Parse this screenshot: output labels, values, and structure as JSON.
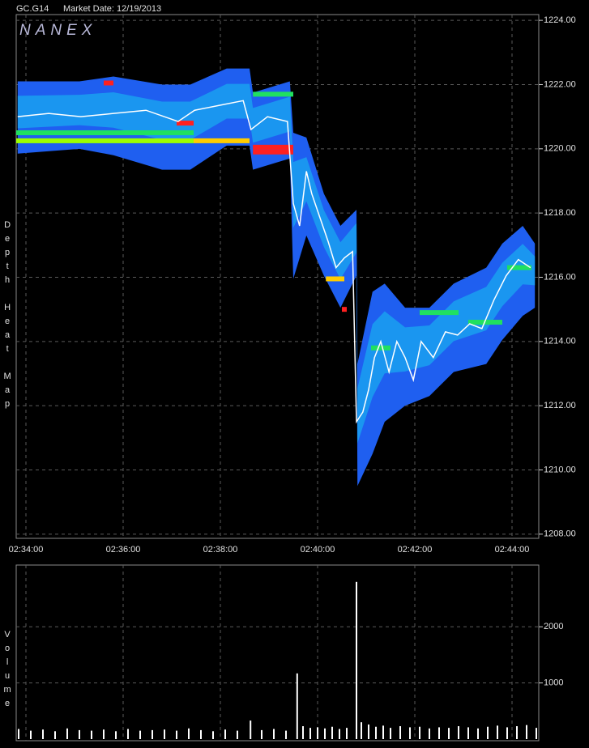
{
  "chart_data": [
    {
      "type": "line",
      "title": "GC.G14",
      "subtitle": "Market Date: 12/19/2013",
      "watermark": "NANEX",
      "ylabel": "Depth Heat Map",
      "xlim": [
        153.8,
        164.55
      ],
      "ylim": [
        1207.87,
        1224.18
      ],
      "xticks": [
        {
          "value": 154,
          "label": "02:34:00"
        },
        {
          "value": 156,
          "label": "02:36:00"
        },
        {
          "value": 158,
          "label": "02:38:00"
        },
        {
          "value": 160,
          "label": "02:40:00"
        },
        {
          "value": 162,
          "label": "02:42:00"
        },
        {
          "value": 164,
          "label": "02:44:00"
        }
      ],
      "yticks": [
        {
          "value": 1224,
          "label": "1224.00"
        },
        {
          "value": 1222,
          "label": "1222.00"
        },
        {
          "value": 1220,
          "label": "1220.00"
        },
        {
          "value": 1218,
          "label": "1218.00"
        },
        {
          "value": 1216,
          "label": "1216.00"
        },
        {
          "value": 1214,
          "label": "1214.00"
        },
        {
          "value": 1212,
          "label": "1212.00"
        },
        {
          "value": 1210,
          "label": "1210.00"
        },
        {
          "value": 1208,
          "label": "1208.00"
        }
      ],
      "grid": true,
      "band": {
        "color": "#1f5ff0",
        "inner_color": "#1aa8f0",
        "x": [
          153.83,
          155.1,
          155.8,
          156.8,
          157.38,
          158.13,
          158.6,
          158.67,
          159.43,
          159.5,
          159.77,
          160.13,
          160.47,
          160.8,
          160.82,
          161.13,
          161.38,
          161.8,
          162.3,
          162.8,
          163.47,
          163.8,
          164.22,
          164.47
        ],
        "high": [
          1222.1,
          1222.1,
          1222.25,
          1222.0,
          1222.0,
          1222.5,
          1222.5,
          1221.75,
          1222.1,
          1220.5,
          1220.35,
          1218.6,
          1217.6,
          1218.1,
          1213.3,
          1215.55,
          1215.8,
          1215.05,
          1215.05,
          1215.8,
          1216.3,
          1217.05,
          1217.6,
          1217.05
        ],
        "low": [
          1219.85,
          1220.0,
          1219.8,
          1219.35,
          1219.35,
          1220.1,
          1220.1,
          1219.35,
          1219.7,
          1215.95,
          1217.3,
          1216.05,
          1215.05,
          1216.05,
          1209.5,
          1210.5,
          1211.5,
          1212.0,
          1212.3,
          1213.05,
          1213.3,
          1214.05,
          1214.8,
          1215.05
        ]
      },
      "levels": [
        {
          "start": 153.8,
          "end": 157.45,
          "price": 1220.25,
          "color": "#9cff00"
        },
        {
          "start": 153.8,
          "end": 157.45,
          "price": 1220.5,
          "color": "#20e060"
        },
        {
          "start": 157.45,
          "end": 158.6,
          "price": 1220.25,
          "color": "#ffcc00"
        },
        {
          "start": 157.1,
          "end": 157.45,
          "price": 1220.8,
          "color": "#ff2020"
        },
        {
          "start": 155.6,
          "end": 155.8,
          "price": 1222.05,
          "color": "#ff2020"
        },
        {
          "start": 158.67,
          "end": 159.5,
          "price": 1220.05,
          "color": "#ff2020"
        },
        {
          "start": 158.67,
          "end": 159.5,
          "price": 1219.9,
          "color": "#ff2020"
        },
        {
          "start": 158.67,
          "end": 159.5,
          "price": 1221.7,
          "color": "#20e060"
        },
        {
          "start": 160.17,
          "end": 160.55,
          "price": 1215.95,
          "color": "#ffcc00"
        },
        {
          "start": 160.5,
          "end": 160.6,
          "price": 1215.0,
          "color": "#ff2020"
        },
        {
          "start": 161.1,
          "end": 161.5,
          "price": 1213.8,
          "color": "#20e060"
        },
        {
          "start": 162.1,
          "end": 162.9,
          "price": 1214.9,
          "color": "#20e060"
        },
        {
          "start": 163.1,
          "end": 163.8,
          "price": 1214.6,
          "color": "#20e060"
        },
        {
          "start": 163.9,
          "end": 164.4,
          "price": 1216.3,
          "color": "#20e060"
        }
      ],
      "series": [
        {
          "color": "#ffffff",
          "x": [
            153.83,
            154.47,
            155.13,
            155.8,
            156.47,
            157.13,
            157.47,
            157.97,
            158.47,
            158.63,
            158.97,
            159.38,
            159.5,
            159.63,
            159.77,
            159.88,
            160.05,
            160.22,
            160.38,
            160.55,
            160.72,
            160.8,
            160.93,
            161.05,
            161.17,
            161.3,
            161.47,
            161.63,
            161.8,
            161.97,
            162.13,
            162.38,
            162.63,
            162.88,
            163.13,
            163.38,
            163.63,
            163.88,
            164.13,
            164.38
          ],
          "values": [
            1221.0,
            1221.1,
            1221.0,
            1221.1,
            1221.2,
            1220.85,
            1221.2,
            1221.35,
            1221.5,
            1220.6,
            1221.0,
            1220.85,
            1218.3,
            1217.6,
            1219.3,
            1218.6,
            1217.85,
            1217.1,
            1216.3,
            1216.6,
            1216.8,
            1211.5,
            1211.8,
            1212.5,
            1213.5,
            1214.0,
            1213.05,
            1214.0,
            1213.5,
            1212.8,
            1214.0,
            1213.5,
            1214.3,
            1214.2,
            1214.55,
            1214.4,
            1215.3,
            1216.05,
            1216.55,
            1216.3
          ]
        }
      ]
    },
    {
      "type": "bar",
      "ylabel": "Volume",
      "xlim": [
        153.8,
        164.55
      ],
      "ylim": [
        0,
        3100
      ],
      "xticks": [
        154,
        156,
        158,
        160,
        162,
        164
      ],
      "yticks": [
        1000,
        2000
      ],
      "grid": true,
      "color": "#ffffff",
      "x": [
        153.85,
        154.1,
        154.35,
        154.6,
        154.85,
        155.1,
        155.35,
        155.6,
        155.85,
        156.1,
        156.35,
        156.6,
        156.85,
        157.1,
        157.35,
        157.6,
        157.85,
        158.1,
        158.35,
        158.62,
        158.85,
        159.1,
        159.35,
        159.58,
        159.7,
        159.85,
        160.0,
        160.15,
        160.3,
        160.45,
        160.6,
        160.8,
        160.9,
        161.05,
        161.2,
        161.35,
        161.5,
        161.7,
        161.9,
        162.1,
        162.3,
        162.5,
        162.7,
        162.9,
        163.1,
        163.3,
        163.5,
        163.7,
        163.9,
        164.1,
        164.3,
        164.5
      ],
      "values": [
        180,
        150,
        170,
        140,
        190,
        160,
        150,
        170,
        140,
        180,
        150,
        160,
        170,
        150,
        190,
        160,
        140,
        170,
        150,
        330,
        160,
        180,
        150,
        1170,
        230,
        200,
        210,
        190,
        220,
        180,
        200,
        2800,
        300,
        260,
        220,
        240,
        200,
        230,
        210,
        220,
        190,
        210,
        200,
        230,
        210,
        190,
        220,
        240,
        210,
        230,
        250,
        200
      ]
    }
  ]
}
